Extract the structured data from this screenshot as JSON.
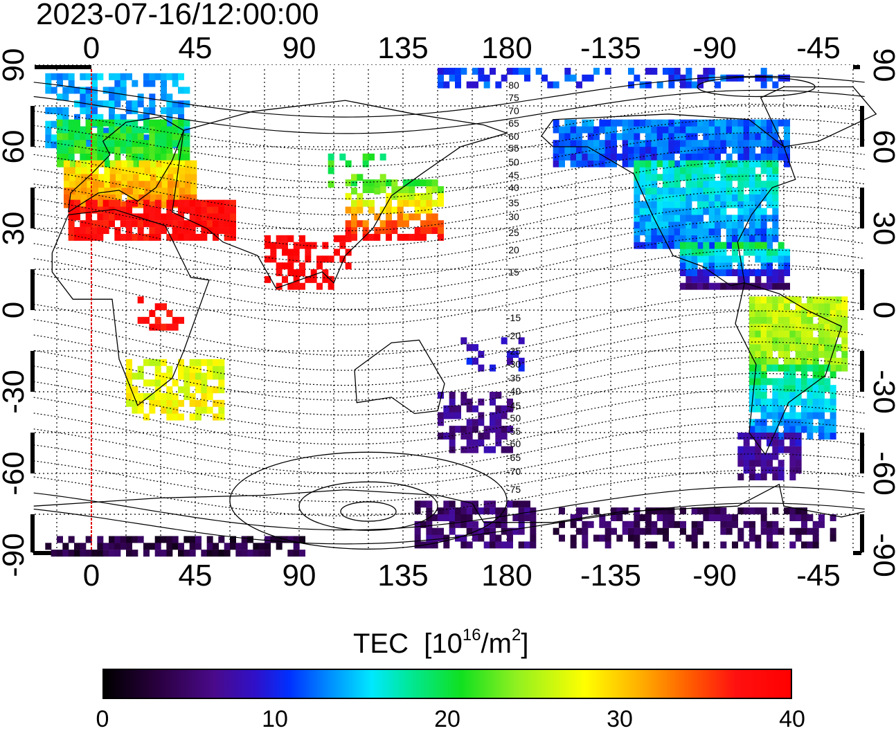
{
  "timestamp": "2023-07-16/12:00:00",
  "map": {
    "lon_ticks_top": [
      "0",
      "45",
      "90",
      "135",
      "180",
      "-135",
      "-90",
      "-45"
    ],
    "lon_ticks_bottom": [
      "0",
      "45",
      "90",
      "135",
      "180",
      "-135",
      "-90",
      "-45"
    ],
    "lat_ticks_left": [
      "90",
      "60",
      "30",
      "0",
      "-30",
      "-60",
      "-90"
    ],
    "lat_ticks_right": [
      "90",
      "60",
      "30",
      "0",
      "-30",
      "-60",
      "-90"
    ],
    "contour_labels_north": [
      "80",
      "75",
      "70",
      "65",
      "60",
      "55",
      "50",
      "45",
      "40",
      "35",
      "30",
      "25",
      "20",
      "15"
    ],
    "contour_labels_south": [
      "-15",
      "-20",
      "-25",
      "-30",
      "-35",
      "-40",
      "-45",
      "-50",
      "-55",
      "-60",
      "-65",
      "-70",
      "-75"
    ],
    "reference_meridian_color": "#e00000"
  },
  "colorbar": {
    "title": "TEC",
    "units_prefix": "[10",
    "units_exp": "16",
    "units_mid": "/m",
    "units_exp2": "2",
    "units_suffix": "]",
    "tick_labels": [
      "0",
      "10",
      "20",
      "30",
      "40"
    ],
    "range": [
      0,
      40
    ]
  }
}
